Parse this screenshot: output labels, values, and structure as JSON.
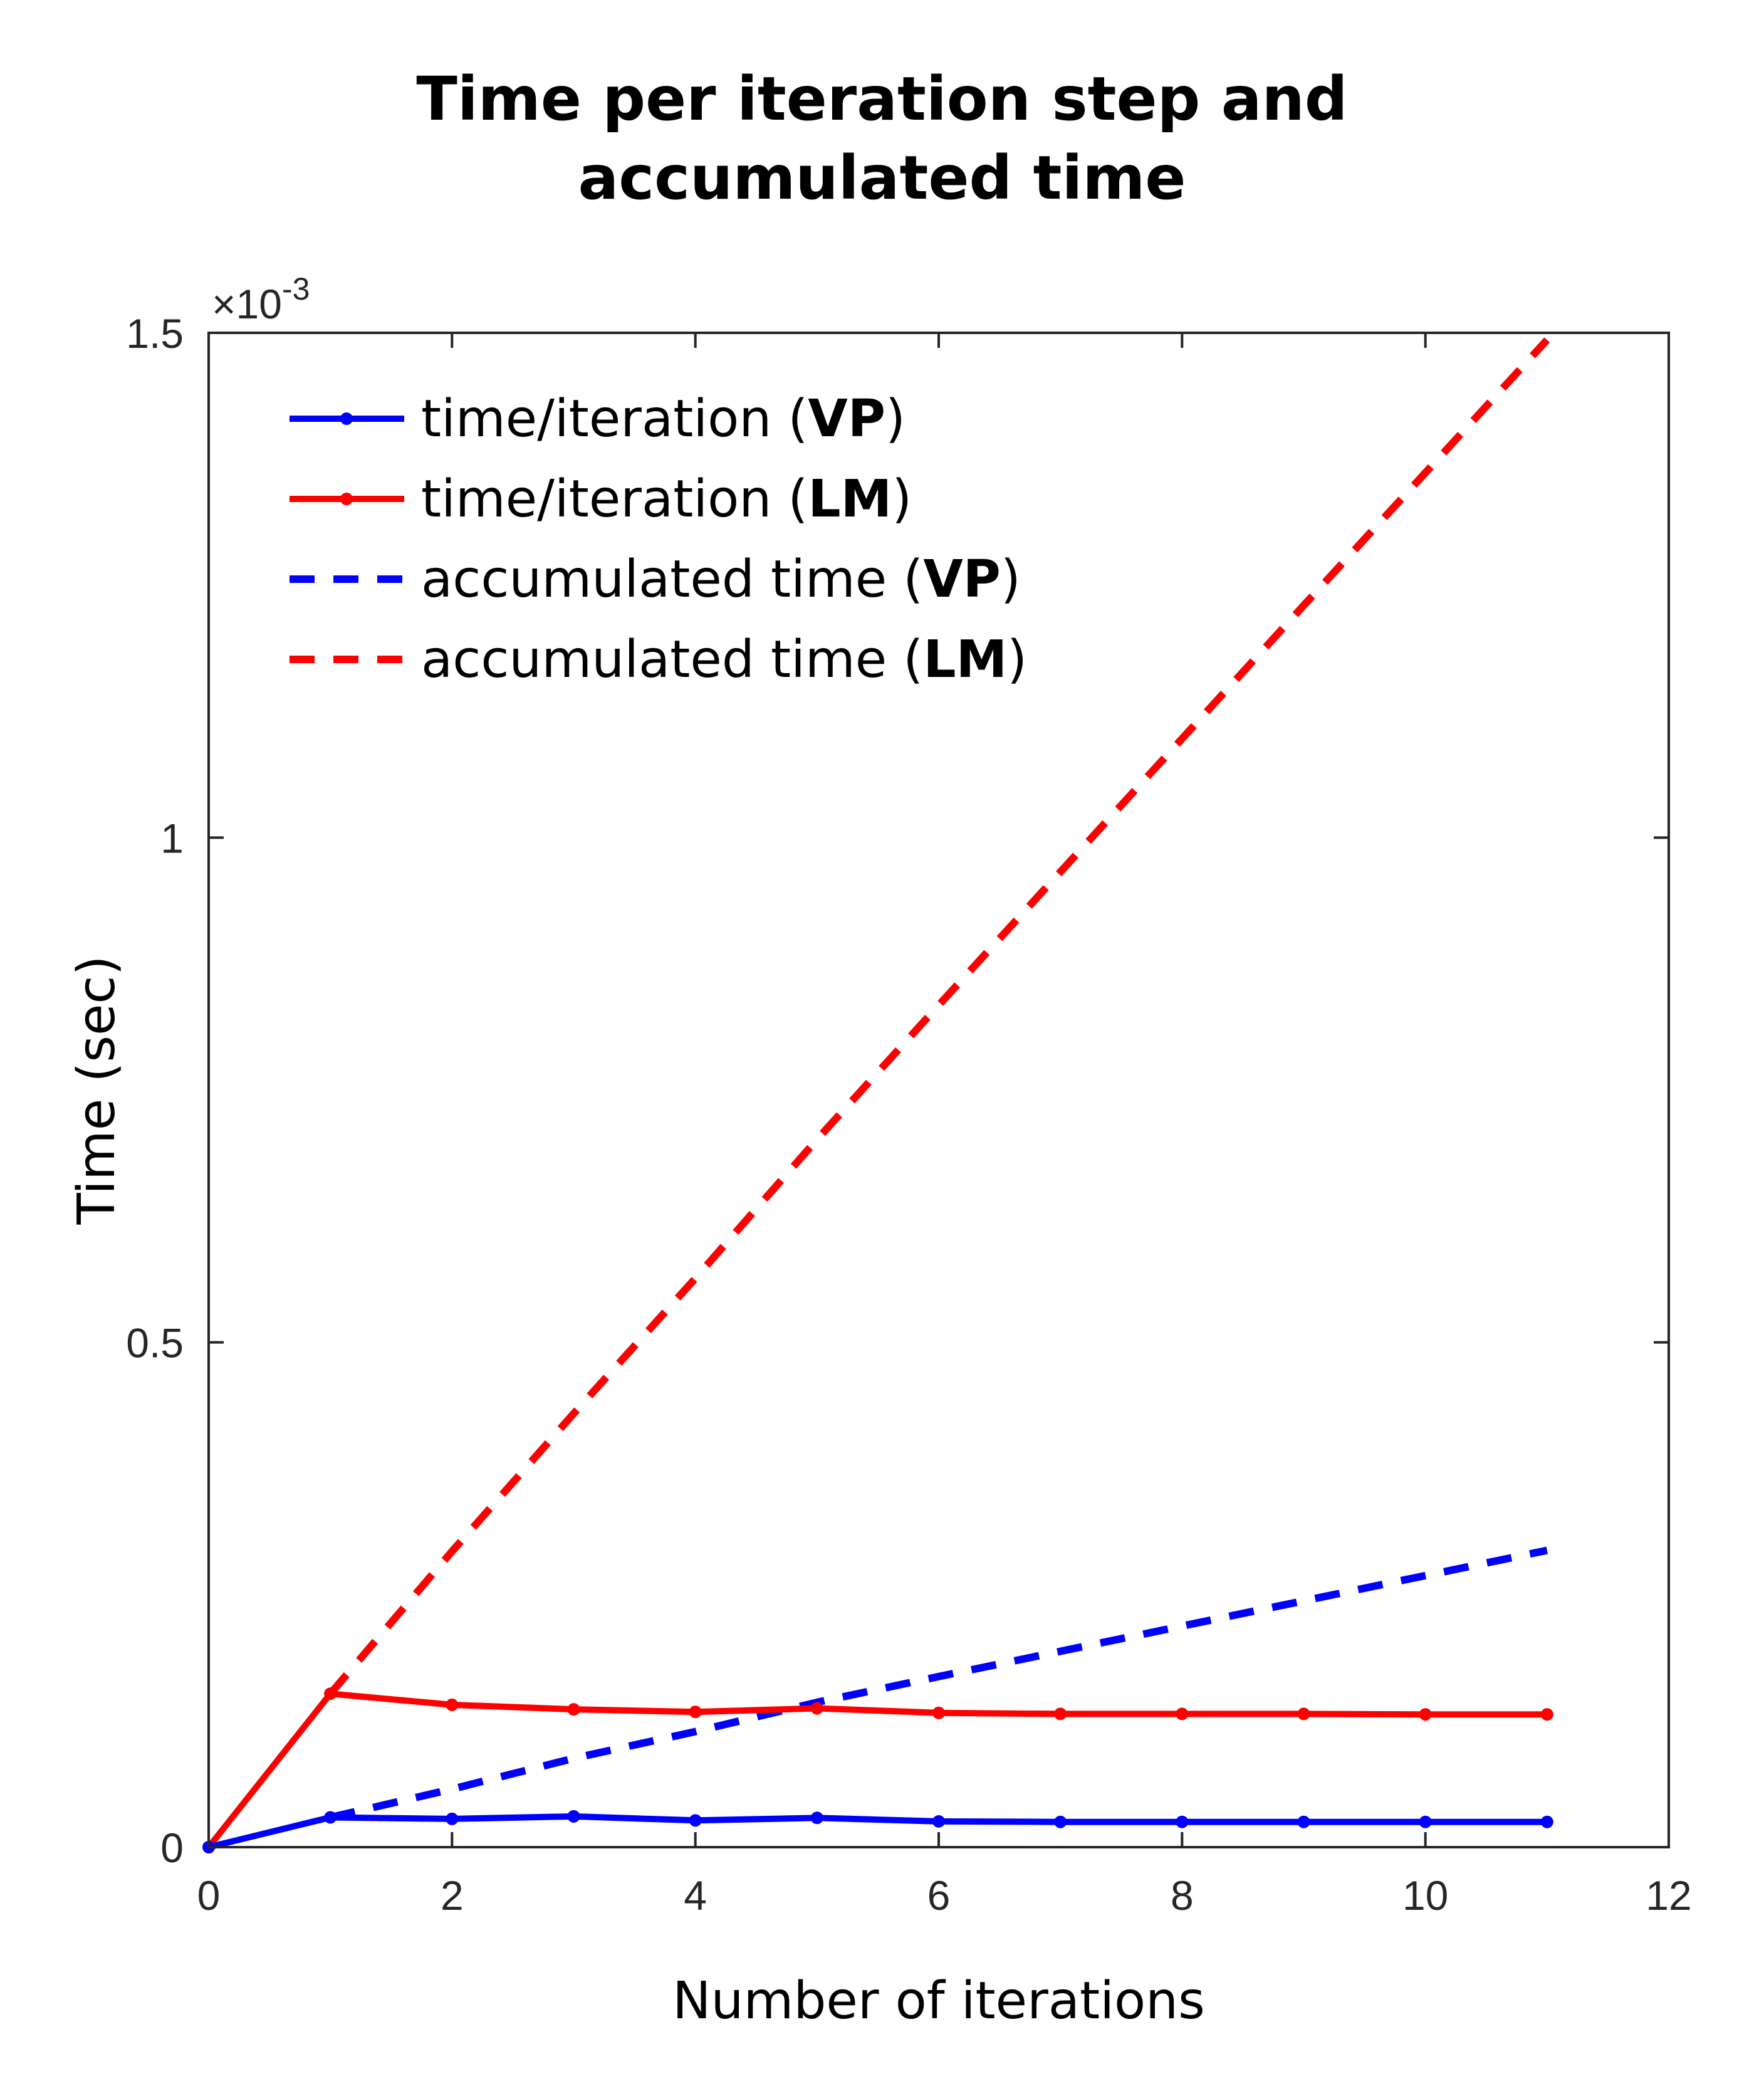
{
  "chart_data": {
    "type": "line",
    "title_lines": [
      "Time per iteration step and",
      "accumulated time"
    ],
    "xlabel": "Number of iterations",
    "ylabel": "Time (sec)",
    "xlim": [
      0,
      12
    ],
    "ylim": [
      0,
      0.0015
    ],
    "x_ticks": [
      "0",
      "2",
      "4",
      "6",
      "8",
      "10",
      "12"
    ],
    "x_tick_values": [
      0,
      2,
      4,
      6,
      8,
      10,
      12
    ],
    "y_ticks": [
      "0",
      "0.5",
      "1",
      "1.5"
    ],
    "y_tick_values": [
      0,
      0.0005,
      0.001,
      0.0015
    ],
    "y_exponent": {
      "base": "×10",
      "power": "-3"
    },
    "x": [
      0,
      1,
      2,
      3,
      4,
      5,
      6,
      7,
      8,
      9,
      10,
      11
    ],
    "series": [
      {
        "name": "time/iteration (VP)",
        "label_text": "time/iteration (",
        "label_bold": "VP",
        "label_end": ")",
        "style": "solid-marker",
        "color": "#0000ff",
        "values": [
          0,
          2.95e-05,
          2.8e-05,
          3.05e-05,
          2.65e-05,
          2.9e-05,
          2.55e-05,
          2.5e-05,
          2.5e-05,
          2.5e-05,
          2.5e-05,
          2.5e-05
        ]
      },
      {
        "name": "time/iteration (LM)",
        "label_text": "time/iteration (",
        "label_bold": "LM",
        "label_end": ")",
        "style": "solid-marker",
        "color": "#ff0000",
        "values": [
          0,
          0.000152,
          0.000141,
          0.0001365,
          0.000134,
          0.0001375,
          0.000133,
          0.000132,
          0.000132,
          0.000132,
          0.0001315,
          0.0001315
        ]
      },
      {
        "name": "accumulated time (VP)",
        "label_text": "accumulated time (",
        "label_bold": "VP",
        "label_end": ")",
        "style": "dashed",
        "color": "#0000ff",
        "values": [
          0,
          2.95e-05,
          5.75e-05,
          8.8e-05,
          0.0001145,
          0.0001435,
          0.000169,
          0.000194,
          0.000219,
          0.000244,
          0.000269,
          0.000294
        ]
      },
      {
        "name": "accumulated time (LM)",
        "label_text": "accumulated time (",
        "label_bold": "LM",
        "label_end": ")",
        "style": "dashed",
        "color": "#ff0000",
        "values": [
          0,
          0.000152,
          0.000293,
          0.0004295,
          0.0005635,
          0.000701,
          0.000834,
          0.000966,
          0.001098,
          0.00123,
          0.0013615,
          0.001493
        ]
      }
    ],
    "legend_position": "top-left",
    "grid": false
  }
}
